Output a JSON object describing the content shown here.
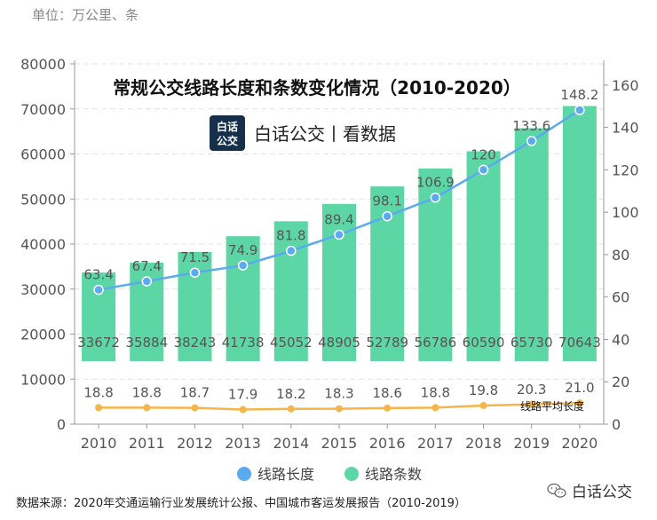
{
  "unit_label": "单位：万公里、条",
  "chart_data": {
    "type": "bar+line",
    "title": "常规公交线路长度和条数变化情况（2010-2020）",
    "brand_badge": "白话公交",
    "brand_text": "白话公交丨看数据",
    "categories": [
      "2010",
      "2011",
      "2012",
      "2013",
      "2014",
      "2015",
      "2016",
      "2017",
      "2018",
      "2019",
      "2020"
    ],
    "bar_series": {
      "name": "线路条数",
      "axis": "left",
      "color": "#5dd6a6",
      "values": [
        33672,
        35884,
        38243,
        41738,
        45052,
        48905,
        52789,
        56786,
        60590,
        65730,
        70643
      ],
      "labels": [
        "33672",
        "35884",
        "38243",
        "41738",
        "45052",
        "48905",
        "52789",
        "56786",
        "60590",
        "65730",
        "70643"
      ]
    },
    "length_series": {
      "name": "线路长度",
      "axis": "right",
      "color": "#5aaaf0",
      "values": [
        63.4,
        67.4,
        71.5,
        74.9,
        81.8,
        89.4,
        98.1,
        106.9,
        120,
        133.6,
        148.2
      ],
      "labels": [
        "63.4",
        "67.4",
        "71.5",
        "74.9",
        "81.8",
        "89.4",
        "98.1",
        "106.9",
        "120",
        "133.6",
        "148.2"
      ]
    },
    "avg_series": {
      "name": "线路平均长度",
      "axis": "right",
      "color": "#f5b54a",
      "values": [
        18.8,
        18.8,
        18.7,
        17.9,
        18.2,
        18.3,
        18.6,
        18.8,
        19.8,
        20.3,
        21.0
      ],
      "labels": [
        "18.8",
        "18.8",
        "18.7",
        "17.9",
        "18.2",
        "18.3",
        "18.6",
        "18.8",
        "19.8",
        "20.3",
        "21.0"
      ]
    },
    "left_axis": {
      "min": 0,
      "max": 80000,
      "ticks": [
        0,
        10000,
        20000,
        30000,
        40000,
        50000,
        60000,
        70000,
        80000
      ],
      "tick_labels": [
        "0",
        "10000",
        "20000",
        "30000",
        "40000",
        "50000",
        "60000",
        "70000",
        "80000"
      ]
    },
    "right_axis": {
      "min": 0,
      "max": 170,
      "ticks": [
        0,
        20,
        40,
        60,
        80,
        100,
        120,
        140,
        160
      ],
      "tick_labels": [
        "0",
        "20",
        "40",
        "60",
        "80",
        "100",
        "120",
        "140",
        "160"
      ]
    },
    "avg_series_label": "线路平均长度",
    "legend": [
      {
        "name": "线路长度",
        "color": "#5aaaf0"
      },
      {
        "name": "线路条数",
        "color": "#5dd6a6"
      }
    ]
  },
  "footnote": "数据来源：2020年交通运输行业发展统计公报、中国城市客运发展报告（2010-2019）",
  "watermark": "白话公交"
}
